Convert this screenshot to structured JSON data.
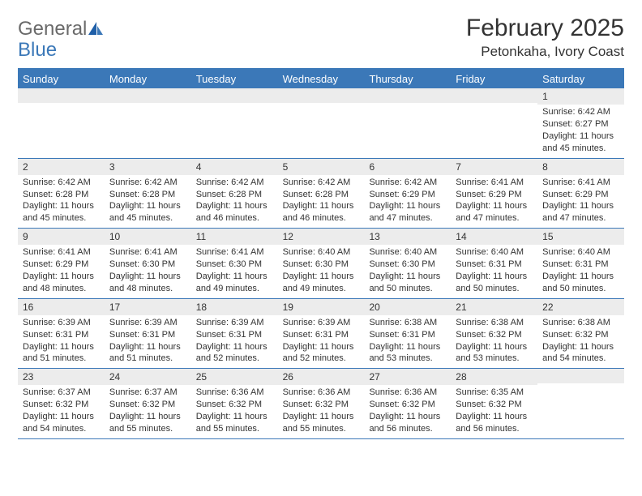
{
  "logo": {
    "word1": "General",
    "word2": "Blue"
  },
  "title": "February 2025",
  "location": "Petonkaha, Ivory Coast",
  "colors": {
    "brand_blue": "#3b78b8",
    "header_text": "#333333",
    "logo_gray": "#6a6a6a",
    "row_stripe": "#ececec",
    "background": "#ffffff"
  },
  "weekdays": [
    "Sunday",
    "Monday",
    "Tuesday",
    "Wednesday",
    "Thursday",
    "Friday",
    "Saturday"
  ],
  "weeks": [
    [
      {
        "n": "",
        "sunrise": "",
        "sunset": "",
        "daylight": ""
      },
      {
        "n": "",
        "sunrise": "",
        "sunset": "",
        "daylight": ""
      },
      {
        "n": "",
        "sunrise": "",
        "sunset": "",
        "daylight": ""
      },
      {
        "n": "",
        "sunrise": "",
        "sunset": "",
        "daylight": ""
      },
      {
        "n": "",
        "sunrise": "",
        "sunset": "",
        "daylight": ""
      },
      {
        "n": "",
        "sunrise": "",
        "sunset": "",
        "daylight": ""
      },
      {
        "n": "1",
        "sunrise": "Sunrise: 6:42 AM",
        "sunset": "Sunset: 6:27 PM",
        "daylight": "Daylight: 11 hours and 45 minutes."
      }
    ],
    [
      {
        "n": "2",
        "sunrise": "Sunrise: 6:42 AM",
        "sunset": "Sunset: 6:28 PM",
        "daylight": "Daylight: 11 hours and 45 minutes."
      },
      {
        "n": "3",
        "sunrise": "Sunrise: 6:42 AM",
        "sunset": "Sunset: 6:28 PM",
        "daylight": "Daylight: 11 hours and 45 minutes."
      },
      {
        "n": "4",
        "sunrise": "Sunrise: 6:42 AM",
        "sunset": "Sunset: 6:28 PM",
        "daylight": "Daylight: 11 hours and 46 minutes."
      },
      {
        "n": "5",
        "sunrise": "Sunrise: 6:42 AM",
        "sunset": "Sunset: 6:28 PM",
        "daylight": "Daylight: 11 hours and 46 minutes."
      },
      {
        "n": "6",
        "sunrise": "Sunrise: 6:42 AM",
        "sunset": "Sunset: 6:29 PM",
        "daylight": "Daylight: 11 hours and 47 minutes."
      },
      {
        "n": "7",
        "sunrise": "Sunrise: 6:41 AM",
        "sunset": "Sunset: 6:29 PM",
        "daylight": "Daylight: 11 hours and 47 minutes."
      },
      {
        "n": "8",
        "sunrise": "Sunrise: 6:41 AM",
        "sunset": "Sunset: 6:29 PM",
        "daylight": "Daylight: 11 hours and 47 minutes."
      }
    ],
    [
      {
        "n": "9",
        "sunrise": "Sunrise: 6:41 AM",
        "sunset": "Sunset: 6:29 PM",
        "daylight": "Daylight: 11 hours and 48 minutes."
      },
      {
        "n": "10",
        "sunrise": "Sunrise: 6:41 AM",
        "sunset": "Sunset: 6:30 PM",
        "daylight": "Daylight: 11 hours and 48 minutes."
      },
      {
        "n": "11",
        "sunrise": "Sunrise: 6:41 AM",
        "sunset": "Sunset: 6:30 PM",
        "daylight": "Daylight: 11 hours and 49 minutes."
      },
      {
        "n": "12",
        "sunrise": "Sunrise: 6:40 AM",
        "sunset": "Sunset: 6:30 PM",
        "daylight": "Daylight: 11 hours and 49 minutes."
      },
      {
        "n": "13",
        "sunrise": "Sunrise: 6:40 AM",
        "sunset": "Sunset: 6:30 PM",
        "daylight": "Daylight: 11 hours and 50 minutes."
      },
      {
        "n": "14",
        "sunrise": "Sunrise: 6:40 AM",
        "sunset": "Sunset: 6:31 PM",
        "daylight": "Daylight: 11 hours and 50 minutes."
      },
      {
        "n": "15",
        "sunrise": "Sunrise: 6:40 AM",
        "sunset": "Sunset: 6:31 PM",
        "daylight": "Daylight: 11 hours and 50 minutes."
      }
    ],
    [
      {
        "n": "16",
        "sunrise": "Sunrise: 6:39 AM",
        "sunset": "Sunset: 6:31 PM",
        "daylight": "Daylight: 11 hours and 51 minutes."
      },
      {
        "n": "17",
        "sunrise": "Sunrise: 6:39 AM",
        "sunset": "Sunset: 6:31 PM",
        "daylight": "Daylight: 11 hours and 51 minutes."
      },
      {
        "n": "18",
        "sunrise": "Sunrise: 6:39 AM",
        "sunset": "Sunset: 6:31 PM",
        "daylight": "Daylight: 11 hours and 52 minutes."
      },
      {
        "n": "19",
        "sunrise": "Sunrise: 6:39 AM",
        "sunset": "Sunset: 6:31 PM",
        "daylight": "Daylight: 11 hours and 52 minutes."
      },
      {
        "n": "20",
        "sunrise": "Sunrise: 6:38 AM",
        "sunset": "Sunset: 6:31 PM",
        "daylight": "Daylight: 11 hours and 53 minutes."
      },
      {
        "n": "21",
        "sunrise": "Sunrise: 6:38 AM",
        "sunset": "Sunset: 6:32 PM",
        "daylight": "Daylight: 11 hours and 53 minutes."
      },
      {
        "n": "22",
        "sunrise": "Sunrise: 6:38 AM",
        "sunset": "Sunset: 6:32 PM",
        "daylight": "Daylight: 11 hours and 54 minutes."
      }
    ],
    [
      {
        "n": "23",
        "sunrise": "Sunrise: 6:37 AM",
        "sunset": "Sunset: 6:32 PM",
        "daylight": "Daylight: 11 hours and 54 minutes."
      },
      {
        "n": "24",
        "sunrise": "Sunrise: 6:37 AM",
        "sunset": "Sunset: 6:32 PM",
        "daylight": "Daylight: 11 hours and 55 minutes."
      },
      {
        "n": "25",
        "sunrise": "Sunrise: 6:36 AM",
        "sunset": "Sunset: 6:32 PM",
        "daylight": "Daylight: 11 hours and 55 minutes."
      },
      {
        "n": "26",
        "sunrise": "Sunrise: 6:36 AM",
        "sunset": "Sunset: 6:32 PM",
        "daylight": "Daylight: 11 hours and 55 minutes."
      },
      {
        "n": "27",
        "sunrise": "Sunrise: 6:36 AM",
        "sunset": "Sunset: 6:32 PM",
        "daylight": "Daylight: 11 hours and 56 minutes."
      },
      {
        "n": "28",
        "sunrise": "Sunrise: 6:35 AM",
        "sunset": "Sunset: 6:32 PM",
        "daylight": "Daylight: 11 hours and 56 minutes."
      },
      {
        "n": "",
        "sunrise": "",
        "sunset": "",
        "daylight": ""
      }
    ]
  ]
}
